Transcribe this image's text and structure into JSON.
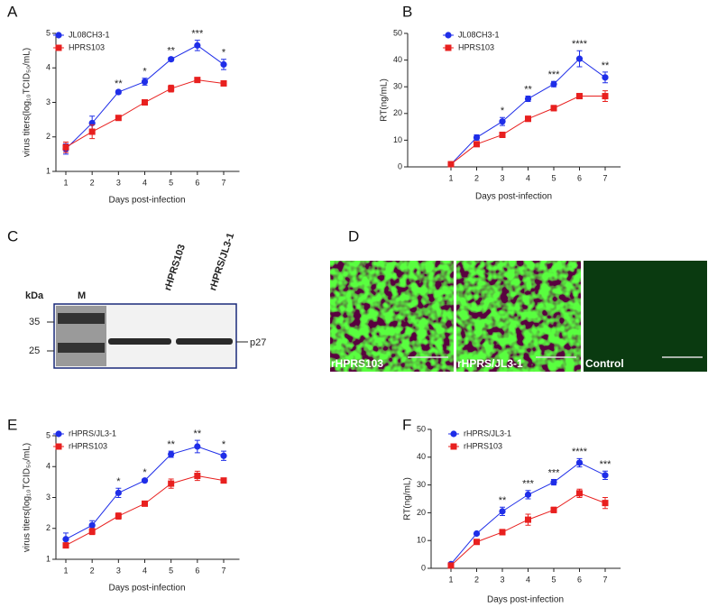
{
  "chart_data": [
    {
      "type": "line",
      "panel": "A",
      "x_label": "Days post-infection",
      "y_label": "virus titers(log₁₀TCID₅₀/mL)",
      "categories": [
        "1",
        "2",
        "3",
        "4",
        "5",
        "6",
        "7"
      ],
      "ylim": [
        1,
        5
      ],
      "yticks": [
        1,
        2,
        3,
        4,
        5
      ],
      "series": [
        {
          "name": "JL08CH3-1",
          "color": "#1f2ee8",
          "marker": "circle",
          "values": [
            1.65,
            2.4,
            3.3,
            3.6,
            4.25,
            4.65,
            4.1
          ],
          "errors": [
            0.15,
            0.2,
            0.05,
            0.1,
            0.05,
            0.15,
            0.15
          ]
        },
        {
          "name": "HPRS103",
          "color": "#e8201f",
          "marker": "square",
          "values": [
            1.7,
            2.15,
            2.55,
            3.0,
            3.4,
            3.65,
            3.55
          ],
          "errors": [
            0.15,
            0.2,
            0.05,
            0.05,
            0.1,
            0.05,
            0.05
          ]
        }
      ],
      "significance": [
        null,
        null,
        "**",
        "*",
        "**",
        "***",
        "*"
      ]
    },
    {
      "type": "line",
      "panel": "B",
      "x_label": "Days post-infection",
      "y_label": "RT(ng/mL)",
      "categories": [
        "1",
        "2",
        "3",
        "4",
        "5",
        "6",
        "7"
      ],
      "ylim": [
        0,
        50
      ],
      "yticks": [
        0,
        10,
        20,
        30,
        40,
        50
      ],
      "series": [
        {
          "name": "JL08CH3-1",
          "color": "#1f2ee8",
          "marker": "circle",
          "values": [
            1,
            11,
            17,
            25.5,
            31,
            40.5,
            33.5
          ],
          "errors": [
            0.5,
            1,
            1.5,
            1,
            1,
            3,
            2
          ]
        },
        {
          "name": "HPRS103",
          "color": "#e8201f",
          "marker": "square",
          "values": [
            1,
            8.5,
            12,
            18,
            22,
            26.5,
            26.5
          ],
          "errors": [
            0.5,
            0.5,
            1,
            1,
            1,
            1,
            2
          ]
        }
      ],
      "significance": [
        null,
        null,
        "*",
        "**",
        "***",
        "****",
        "**"
      ]
    },
    {
      "type": "line",
      "panel": "E",
      "x_label": "Days post-infection",
      "y_label": "virus titers(log₁₀TCID₅₀/mL)",
      "categories": [
        "1",
        "2",
        "3",
        "4",
        "5",
        "6",
        "7"
      ],
      "ylim": [
        1,
        5
      ],
      "yticks": [
        1,
        2,
        3,
        4,
        5
      ],
      "series": [
        {
          "name": "rHPRS/JL3-1",
          "color": "#1f2ee8",
          "marker": "circle",
          "values": [
            1.65,
            2.1,
            3.15,
            3.55,
            4.4,
            4.65,
            4.35
          ],
          "errors": [
            0.2,
            0.15,
            0.15,
            0.05,
            0.1,
            0.2,
            0.15
          ]
        },
        {
          "name": "rHPRS103",
          "color": "#e8201f",
          "marker": "square",
          "values": [
            1.45,
            1.9,
            2.4,
            2.8,
            3.45,
            3.7,
            3.55
          ],
          "errors": [
            0.05,
            0.1,
            0.1,
            0.05,
            0.15,
            0.15,
            0.05
          ]
        }
      ],
      "significance": [
        null,
        null,
        "*",
        "*",
        "**",
        "**",
        "*"
      ]
    },
    {
      "type": "line",
      "panel": "F",
      "x_label": "Days post-infection",
      "y_label": "RT(ng/mL)",
      "categories": [
        "1",
        "2",
        "3",
        "4",
        "5",
        "6",
        "7"
      ],
      "ylim": [
        0,
        50
      ],
      "yticks": [
        0,
        10,
        20,
        30,
        40,
        50
      ],
      "series": [
        {
          "name": "rHPRS/JL3-1",
          "color": "#1f2ee8",
          "marker": "circle",
          "values": [
            1.5,
            12.5,
            20.5,
            26.5,
            31,
            38,
            33.5
          ],
          "errors": [
            0.5,
            0.5,
            1.5,
            1.5,
            1,
            1.5,
            1.5
          ]
        },
        {
          "name": "rHPRS103",
          "color": "#e8201f",
          "marker": "square",
          "values": [
            1,
            9.5,
            13,
            17.5,
            21,
            27,
            23.5
          ],
          "errors": [
            0.5,
            0.5,
            1,
            2,
            1,
            1.5,
            2
          ]
        }
      ],
      "significance": [
        null,
        null,
        "**",
        "***",
        "***",
        "****",
        "***"
      ]
    }
  ],
  "blot": {
    "panel": "C",
    "unit": "kDa",
    "lanes": [
      "M",
      "rHPRS103",
      "rHPRS/JL3-1"
    ],
    "markers": [
      35,
      25
    ],
    "band": "p27"
  },
  "images": {
    "panel": "D",
    "labels": [
      "rHPRS103",
      "rHPRS/JL3-1",
      "Control"
    ]
  }
}
